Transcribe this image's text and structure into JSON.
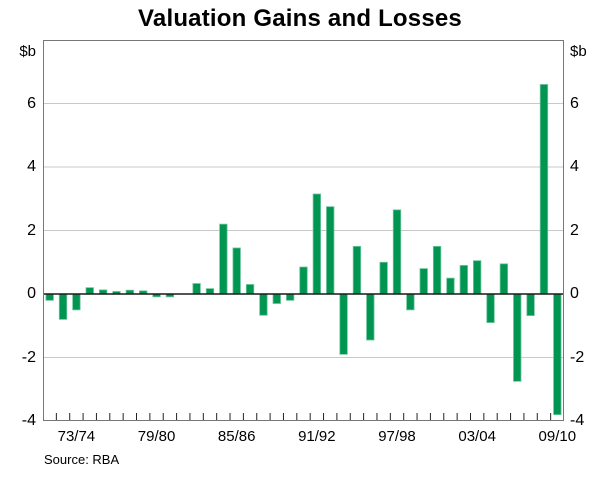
{
  "title": "Valuation Gains and Losses",
  "unit_label_left": "$b",
  "unit_label_right": "$b",
  "source": "Source: RBA",
  "colors": {
    "bar": "#009551",
    "bar_edge": "#6ec49b",
    "gridline": "#c9c9c9",
    "zero_line": "#1a1a1a",
    "frame": "#777777",
    "tick": "#222222",
    "text": "#000000"
  },
  "chart_data": {
    "type": "bar",
    "title": "Valuation Gains and Losses",
    "xlabel": "",
    "ylabel": "$b",
    "ylim": [
      -4,
      8
    ],
    "yticks": [
      6,
      4,
      2,
      0,
      -2,
      -4
    ],
    "gridlines": [
      6,
      4,
      2,
      -2
    ],
    "grid": "horizontal-only",
    "legend_position": "none",
    "x_axis_labels": [
      "73/74",
      "79/80",
      "85/86",
      "91/92",
      "97/98",
      "03/04",
      "09/10"
    ],
    "categories": [
      "71/72",
      "72/73",
      "73/74",
      "74/75",
      "75/76",
      "76/77",
      "77/78",
      "78/79",
      "79/80",
      "80/81",
      "81/82",
      "82/83",
      "83/84",
      "84/85",
      "85/86",
      "86/87",
      "87/88",
      "88/89",
      "89/90",
      "90/91",
      "91/92",
      "92/93",
      "93/94",
      "94/95",
      "95/96",
      "96/97",
      "97/98",
      "98/99",
      "99/00",
      "00/01",
      "01/02",
      "02/03",
      "03/04",
      "04/05",
      "05/06",
      "06/07",
      "07/08",
      "08/09",
      "09/10"
    ],
    "values": [
      -0.2,
      -0.8,
      -0.5,
      0.2,
      0.13,
      0.08,
      0.12,
      0.1,
      -0.09,
      -0.09,
      0.0,
      0.33,
      0.17,
      2.2,
      1.45,
      0.3,
      -0.67,
      -0.3,
      -0.2,
      0.85,
      3.15,
      2.75,
      -1.9,
      1.5,
      -1.45,
      1.0,
      2.65,
      -0.5,
      0.8,
      1.5,
      0.5,
      0.9,
      1.05,
      -0.9,
      0.95,
      -2.75,
      -0.68,
      6.6,
      -3.8
    ],
    "source": "Source: RBA"
  }
}
